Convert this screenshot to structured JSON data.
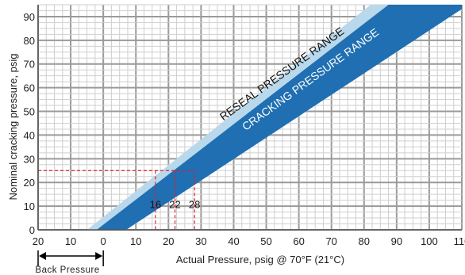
{
  "chart_data": {
    "type": "area",
    "title": "",
    "xlabel": "Actual Pressure, psig @ 70°F (21°C)",
    "ylabel": "Nominal cracking pressure, psig",
    "x_ticks": [
      {
        "value": -20,
        "label": "20"
      },
      {
        "value": -10,
        "label": "10"
      },
      {
        "value": 0,
        "label": "0"
      },
      {
        "value": 10,
        "label": "10"
      },
      {
        "value": 20,
        "label": "20"
      },
      {
        "value": 30,
        "label": "30"
      },
      {
        "value": 40,
        "label": "40"
      },
      {
        "value": 50,
        "label": "50"
      },
      {
        "value": 60,
        "label": "60"
      },
      {
        "value": 70,
        "label": "70"
      },
      {
        "value": 80,
        "label": "80"
      },
      {
        "value": 90,
        "label": "90"
      },
      {
        "value": 100,
        "label": "100"
      },
      {
        "value": 110,
        "label": "110"
      }
    ],
    "y_ticks": [
      0,
      10,
      20,
      30,
      40,
      50,
      60,
      70,
      80,
      90
    ],
    "xlim": [
      -20,
      110
    ],
    "ylim": [
      0,
      95
    ],
    "grid": true,
    "series": [
      {
        "name": "RESEAL PRESSURE RANGE",
        "color": "#b9d8ec",
        "polygon": [
          [
            -5,
            0
          ],
          [
            6,
            0
          ],
          [
            95,
            95
          ],
          [
            82,
            95
          ]
        ]
      },
      {
        "name": "CRACKING PRESSURE RANGE",
        "color": "#1f6fb2",
        "polygon": [
          [
            -2,
            0
          ],
          [
            7,
            0
          ],
          [
            112,
            95
          ],
          [
            87.5,
            95
          ]
        ]
      }
    ],
    "back_pressure": {
      "label": "Back Pressure",
      "from": -20,
      "to": 0
    },
    "example": {
      "y": 25,
      "x_marks": [
        {
          "x": 16,
          "label": "16"
        },
        {
          "x": 22,
          "label": "22"
        },
        {
          "x": 28,
          "label": "28"
        }
      ],
      "color": "#e0202a"
    }
  }
}
